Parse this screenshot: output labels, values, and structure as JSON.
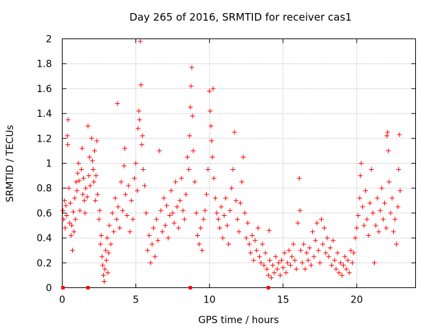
{
  "chart_data": {
    "type": "scatter",
    "title": "Day 265 of 2016, SRMTID for receiver cas1",
    "xlabel": "GPS time / hours",
    "ylabel": "SRMTID / TECUs",
    "xlim": [
      0,
      24
    ],
    "ylim": [
      0,
      2
    ],
    "x_ticks": [
      {
        "value": 0,
        "label": "0"
      },
      {
        "value": 5,
        "label": "5"
      },
      {
        "value": 10,
        "label": "10"
      },
      {
        "value": 15,
        "label": "15"
      },
      {
        "value": 20,
        "label": "20"
      }
    ],
    "y_ticks": [
      {
        "value": 0,
        "label": "0"
      },
      {
        "value": 0.2,
        "label": "0.2"
      },
      {
        "value": 0.4,
        "label": "0.4"
      },
      {
        "value": 0.6,
        "label": "0.6"
      },
      {
        "value": 0.8,
        "label": "0.8"
      },
      {
        "value": 1,
        "label": "1"
      },
      {
        "value": 1.2,
        "label": "1.2"
      },
      {
        "value": 1.4,
        "label": "1.4"
      },
      {
        "value": 1.6,
        "label": "1.6"
      },
      {
        "value": 1.8,
        "label": "1.8"
      },
      {
        "value": 2,
        "label": "2"
      }
    ],
    "grid": true,
    "marker": "+",
    "color": "#ff0000",
    "series": [
      {
        "name": "SRMTID",
        "points": [
          [
            0.05,
            0.62
          ],
          [
            0.1,
            0.55
          ],
          [
            0.15,
            0.7
          ],
          [
            0.2,
            0.48
          ],
          [
            0.25,
            0.66
          ],
          [
            0.3,
            0.58
          ],
          [
            0.35,
            1.22
          ],
          [
            0.38,
            1.15
          ],
          [
            0.4,
            1.35
          ],
          [
            0.45,
            0.8
          ],
          [
            0.5,
            0.52
          ],
          [
            0.55,
            0.68
          ],
          [
            0.6,
            0.42
          ],
          [
            0.65,
            0.5
          ],
          [
            0.7,
            0.3
          ],
          [
            0.75,
            0.61
          ],
          [
            0.8,
            0.45
          ],
          [
            0.85,
            0.72
          ],
          [
            0.9,
            0.55
          ],
          [
            0.95,
            0.85
          ],
          [
            1.0,
            0.78
          ],
          [
            1.05,
            0.92
          ],
          [
            1.1,
            1.0
          ],
          [
            1.15,
            0.86
          ],
          [
            1.2,
            0.62
          ],
          [
            1.3,
            0.95
          ],
          [
            1.35,
            1.12
          ],
          [
            1.4,
            0.75
          ],
          [
            1.45,
            0.88
          ],
          [
            1.5,
            0.7
          ],
          [
            1.55,
            0.6
          ],
          [
            1.6,
            0.8
          ],
          [
            1.7,
            0.73
          ],
          [
            1.75,
            1.3
          ],
          [
            1.8,
            0.9
          ],
          [
            1.85,
            1.05
          ],
          [
            1.9,
            0.82
          ],
          [
            2.0,
            1.2
          ],
          [
            2.05,
            1.02
          ],
          [
            2.1,
            0.95
          ],
          [
            2.15,
            0.85
          ],
          [
            2.2,
            1.1
          ],
          [
            2.25,
            0.7
          ],
          [
            2.3,
            0.9
          ],
          [
            2.35,
            1.18
          ],
          [
            2.4,
            0.75
          ],
          [
            2.5,
            0.55
          ],
          [
            2.55,
            0.62
          ],
          [
            2.6,
            0.35
          ],
          [
            2.65,
            0.42
          ],
          [
            2.7,
            0.25
          ],
          [
            2.75,
            0.18
          ],
          [
            2.8,
            0.1
          ],
          [
            2.85,
            0.05
          ],
          [
            2.9,
            0.15
          ],
          [
            2.95,
            0.3
          ],
          [
            3.0,
            0.22
          ],
          [
            3.05,
            0.4
          ],
          [
            3.1,
            0.12
          ],
          [
            3.15,
            0.28
          ],
          [
            3.2,
            0.5
          ],
          [
            3.3,
            0.35
          ],
          [
            3.4,
            0.6
          ],
          [
            3.5,
            0.45
          ],
          [
            3.6,
            0.72
          ],
          [
            3.7,
            0.55
          ],
          [
            3.75,
            1.48
          ],
          [
            3.8,
            0.65
          ],
          [
            3.9,
            0.48
          ],
          [
            4.0,
            0.85
          ],
          [
            4.1,
            0.62
          ],
          [
            4.2,
            0.98
          ],
          [
            4.25,
            1.12
          ],
          [
            4.3,
            0.75
          ],
          [
            4.4,
            0.58
          ],
          [
            4.5,
            0.82
          ],
          [
            4.6,
            0.45
          ],
          [
            4.7,
            0.7
          ],
          [
            4.8,
            0.55
          ],
          [
            4.9,
            0.88
          ],
          [
            5.0,
            1.0
          ],
          [
            5.1,
            0.78
          ],
          [
            5.15,
            1.28
          ],
          [
            5.2,
            1.42
          ],
          [
            5.25,
            1.35
          ],
          [
            5.3,
            1.98
          ],
          [
            5.35,
            1.63
          ],
          [
            5.4,
            1.15
          ],
          [
            5.45,
            1.22
          ],
          [
            5.5,
            0.95
          ],
          [
            5.6,
            0.82
          ],
          [
            5.7,
            0.6
          ],
          [
            5.8,
            0.3
          ],
          [
            5.9,
            0.42
          ],
          [
            6.0,
            0.2
          ],
          [
            6.1,
            0.35
          ],
          [
            6.2,
            0.48
          ],
          [
            6.3,
            0.25
          ],
          [
            6.4,
            0.55
          ],
          [
            6.5,
            0.38
          ],
          [
            6.6,
            1.1
          ],
          [
            6.7,
            0.62
          ],
          [
            6.8,
            0.45
          ],
          [
            6.9,
            0.72
          ],
          [
            7.0,
            0.5
          ],
          [
            7.1,
            0.66
          ],
          [
            7.2,
            0.4
          ],
          [
            7.3,
            0.58
          ],
          [
            7.4,
            0.78
          ],
          [
            7.5,
            0.6
          ],
          [
            7.6,
            0.52
          ],
          [
            7.7,
            0.85
          ],
          [
            7.8,
            0.65
          ],
          [
            7.9,
            0.48
          ],
          [
            8.0,
            0.7
          ],
          [
            8.1,
            0.88
          ],
          [
            8.2,
            0.62
          ],
          [
            8.3,
            0.55
          ],
          [
            8.4,
            0.75
          ],
          [
            8.5,
            1.05
          ],
          [
            8.6,
            0.95
          ],
          [
            8.65,
            1.22
          ],
          [
            8.7,
            1.45
          ],
          [
            8.75,
            1.62
          ],
          [
            8.8,
            1.77
          ],
          [
            8.85,
            1.38
          ],
          [
            8.9,
            1.1
          ],
          [
            9.0,
            0.85
          ],
          [
            9.1,
            0.6
          ],
          [
            9.2,
            0.42
          ],
          [
            9.3,
            0.35
          ],
          [
            9.4,
            0.48
          ],
          [
            9.5,
            0.3
          ],
          [
            9.6,
            0.55
          ],
          [
            9.7,
            0.62
          ],
          [
            9.8,
            0.75
          ],
          [
            9.9,
            0.95
          ],
          [
            10.0,
            1.58
          ],
          [
            10.05,
            1.42
          ],
          [
            10.1,
            1.3
          ],
          [
            10.15,
            1.18
          ],
          [
            10.2,
            1.05
          ],
          [
            10.25,
            1.6
          ],
          [
            10.3,
            0.88
          ],
          [
            10.4,
            0.72
          ],
          [
            10.5,
            0.6
          ],
          [
            10.6,
            0.55
          ],
          [
            10.7,
            0.48
          ],
          [
            10.8,
            0.65
          ],
          [
            10.9,
            0.4
          ],
          [
            11.0,
            0.58
          ],
          [
            11.1,
            0.72
          ],
          [
            11.2,
            0.5
          ],
          [
            11.3,
            0.35
          ],
          [
            11.4,
            0.62
          ],
          [
            11.5,
            0.8
          ],
          [
            11.6,
            0.95
          ],
          [
            11.7,
            1.25
          ],
          [
            11.8,
            0.7
          ],
          [
            11.9,
            0.55
          ],
          [
            12.0,
            0.45
          ],
          [
            12.1,
            0.68
          ],
          [
            12.2,
            0.85
          ],
          [
            12.3,
            1.05
          ],
          [
            12.4,
            0.6
          ],
          [
            12.5,
            0.4
          ],
          [
            12.6,
            0.52
          ],
          [
            12.7,
            0.35
          ],
          [
            12.8,
            0.28
          ],
          [
            12.9,
            0.42
          ],
          [
            13.0,
            0.22
          ],
          [
            13.1,
            0.38
          ],
          [
            13.2,
            0.3
          ],
          [
            13.3,
            0.48
          ],
          [
            13.4,
            0.25
          ],
          [
            13.5,
            0.2
          ],
          [
            13.6,
            0.35
          ],
          [
            13.7,
            0.18
          ],
          [
            13.8,
            0.28
          ],
          [
            13.9,
            0.15
          ],
          [
            14.0,
            0.1
          ],
          [
            14.05,
            0.46
          ],
          [
            14.1,
            0.22
          ],
          [
            14.2,
            0.08
          ],
          [
            14.3,
            0.18
          ],
          [
            14.4,
            0.12
          ],
          [
            14.5,
            0.25
          ],
          [
            14.6,
            0.15
          ],
          [
            14.7,
            0.2
          ],
          [
            14.8,
            0.1
          ],
          [
            14.9,
            0.22
          ],
          [
            15.0,
            0.16
          ],
          [
            15.1,
            0.28
          ],
          [
            15.2,
            0.12
          ],
          [
            15.3,
            0.2
          ],
          [
            15.4,
            0.3
          ],
          [
            15.5,
            0.18
          ],
          [
            15.6,
            0.25
          ],
          [
            15.7,
            0.35
          ],
          [
            15.8,
            0.22
          ],
          [
            15.9,
            0.15
          ],
          [
            16.0,
            0.52
          ],
          [
            16.1,
            0.88
          ],
          [
            16.15,
            0.62
          ],
          [
            16.2,
            0.3
          ],
          [
            16.3,
            0.2
          ],
          [
            16.4,
            0.35
          ],
          [
            16.5,
            0.15
          ],
          [
            16.6,
            0.28
          ],
          [
            16.7,
            0.22
          ],
          [
            16.8,
            0.32
          ],
          [
            16.9,
            0.18
          ],
          [
            17.0,
            0.45
          ],
          [
            17.1,
            0.25
          ],
          [
            17.2,
            0.38
          ],
          [
            17.3,
            0.52
          ],
          [
            17.4,
            0.3
          ],
          [
            17.5,
            0.2
          ],
          [
            17.6,
            0.55
          ],
          [
            17.7,
            0.35
          ],
          [
            17.8,
            0.48
          ],
          [
            17.9,
            0.28
          ],
          [
            18.0,
            0.4
          ],
          [
            18.1,
            0.25
          ],
          [
            18.2,
            0.32
          ],
          [
            18.3,
            0.18
          ],
          [
            18.4,
            0.38
          ],
          [
            18.5,
            0.22
          ],
          [
            18.6,
            0.15
          ],
          [
            18.7,
            0.28
          ],
          [
            18.8,
            0.12
          ],
          [
            18.9,
            0.2
          ],
          [
            19.0,
            0.1
          ],
          [
            19.1,
            0.18
          ],
          [
            19.2,
            0.25
          ],
          [
            19.3,
            0.15
          ],
          [
            19.4,
            0.22
          ],
          [
            19.5,
            0.12
          ],
          [
            19.6,
            0.3
          ],
          [
            19.7,
            0.2
          ],
          [
            19.8,
            0.28
          ],
          [
            19.9,
            0.4
          ],
          [
            20.0,
            0.48
          ],
          [
            20.1,
            0.58
          ],
          [
            20.2,
            0.72
          ],
          [
            20.25,
            0.9
          ],
          [
            20.3,
            1.0
          ],
          [
            20.4,
            0.65
          ],
          [
            20.5,
            0.5
          ],
          [
            20.6,
            0.78
          ],
          [
            20.7,
            0.55
          ],
          [
            20.8,
            0.42
          ],
          [
            20.9,
            0.68
          ],
          [
            21.0,
            0.95
          ],
          [
            21.1,
            0.6
          ],
          [
            21.2,
            0.2
          ],
          [
            21.3,
            0.5
          ],
          [
            21.4,
            0.72
          ],
          [
            21.5,
            0.45
          ],
          [
            21.6,
            0.62
          ],
          [
            21.7,
            0.8
          ],
          [
            21.8,
            0.55
          ],
          [
            21.9,
            0.68
          ],
          [
            22.0,
            0.48
          ],
          [
            22.05,
            1.22
          ],
          [
            22.1,
            1.25
          ],
          [
            22.15,
            1.1
          ],
          [
            22.2,
            0.85
          ],
          [
            22.3,
            0.6
          ],
          [
            22.4,
            0.72
          ],
          [
            22.5,
            0.45
          ],
          [
            22.6,
            0.55
          ],
          [
            22.7,
            0.35
          ],
          [
            22.8,
            0.65
          ],
          [
            22.85,
            0.95
          ],
          [
            22.9,
            1.23
          ],
          [
            22.95,
            0.78
          ]
        ]
      }
    ],
    "baseline_markers": [
      0.05,
      1.75,
      8.7,
      14.0
    ]
  }
}
